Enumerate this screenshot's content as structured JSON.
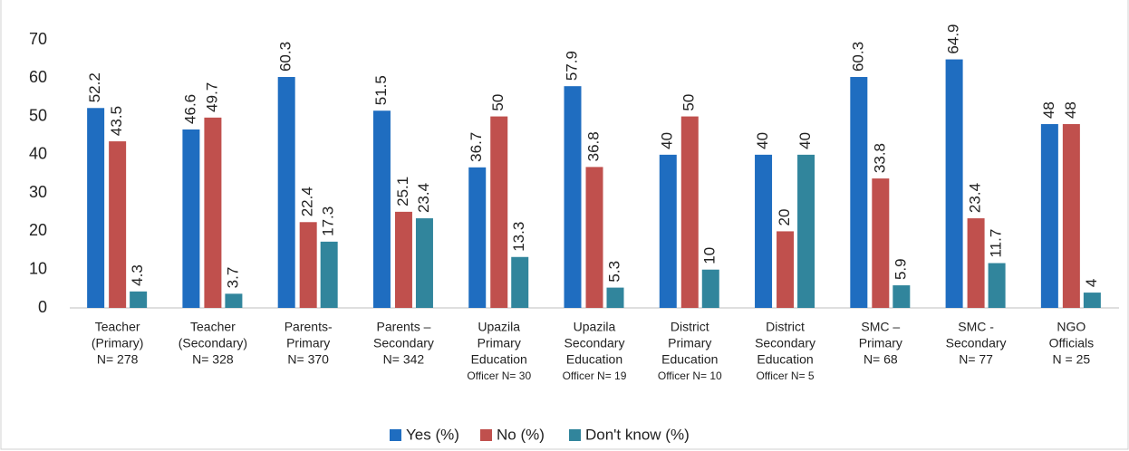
{
  "chart_data": {
    "type": "bar",
    "categories": [
      [
        "Teacher",
        "(Primary)",
        "N= 278"
      ],
      [
        "Teacher",
        "(Secondary)",
        "N= 328"
      ],
      [
        "Parents-",
        "Primary",
        "N= 370"
      ],
      [
        "Parents –",
        "Secondary",
        "N= 342"
      ],
      [
        "Upazila",
        "Primary",
        "Education",
        "Officer N= 30"
      ],
      [
        "Upazila",
        "Secondary",
        "Education",
        "Officer N= 19"
      ],
      [
        "District",
        "Primary",
        "Education",
        "Officer N= 10"
      ],
      [
        "District",
        "Secondary",
        "Education",
        "Officer N= 5"
      ],
      [
        "SMC –",
        "Primary",
        "N= 68"
      ],
      [
        "SMC -",
        "Secondary",
        "N= 77"
      ],
      [
        "NGO",
        "Officials",
        "N = 25"
      ]
    ],
    "series": [
      {
        "name": "Yes (%)",
        "color": "#1f6dc0",
        "values": [
          52.2,
          46.6,
          60.3,
          51.5,
          36.7,
          57.9,
          40,
          40,
          60.3,
          64.9,
          48
        ]
      },
      {
        "name": "No (%)",
        "color": "#c0504d",
        "values": [
          43.5,
          49.7,
          22.4,
          25.1,
          50,
          36.8,
          50,
          20,
          33.8,
          23.4,
          48
        ]
      },
      {
        "name": "Don't know (%)",
        "color": "#31859c",
        "values": [
          4.3,
          3.7,
          17.3,
          23.4,
          13.3,
          5.3,
          10,
          40,
          5.9,
          11.7,
          4
        ]
      }
    ],
    "ylim": [
      0,
      70
    ],
    "yticks": [
      0,
      10,
      20,
      30,
      40,
      50,
      60,
      70
    ],
    "grid": false,
    "legend": "bottom"
  }
}
